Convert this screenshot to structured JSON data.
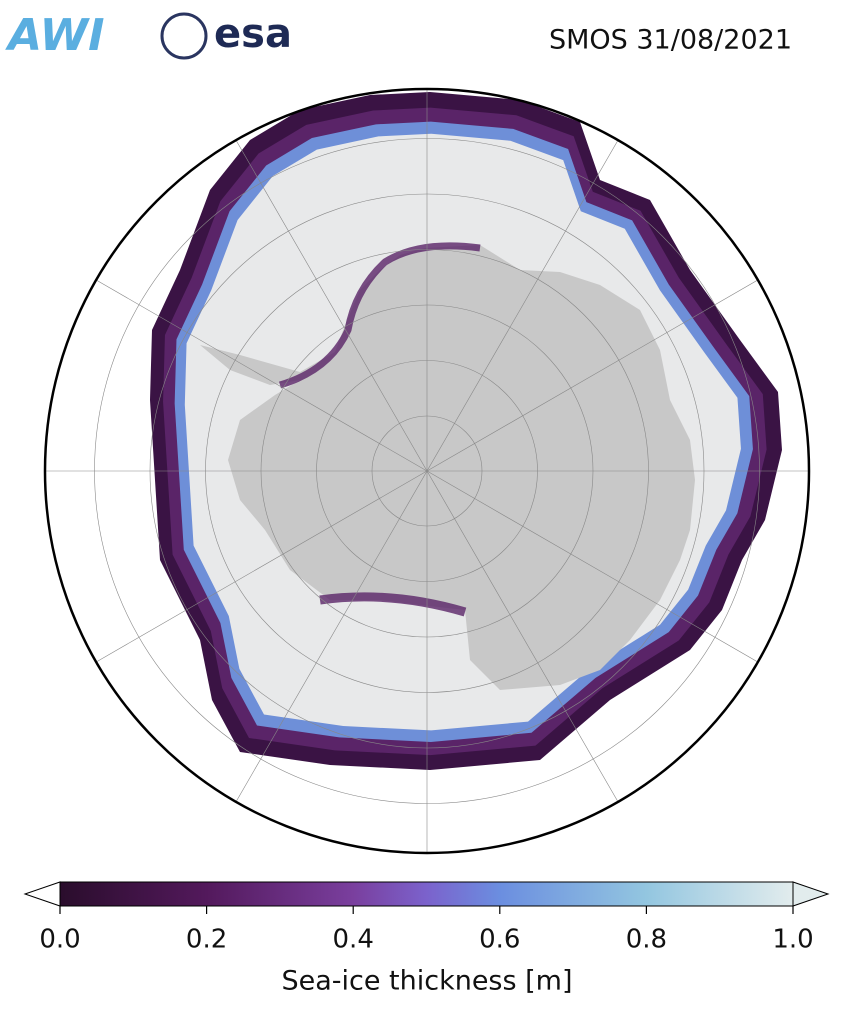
{
  "header": {
    "logos": [
      "AWI",
      "esa"
    ],
    "title": "SMOS 31/08/2021"
  },
  "colorbar": {
    "label": "Sea-ice thickness [m]",
    "lim": [
      0,
      1
    ],
    "ticks": [
      {
        "value": 0,
        "label": "0.0"
      },
      {
        "value": 0.2,
        "label": "0.2"
      },
      {
        "value": 0.4,
        "label": "0.4"
      },
      {
        "value": 0.6,
        "label": "0.6"
      },
      {
        "value": 0.8,
        "label": "0.8"
      },
      {
        "value": 1,
        "label": "1.0"
      }
    ]
  }
}
